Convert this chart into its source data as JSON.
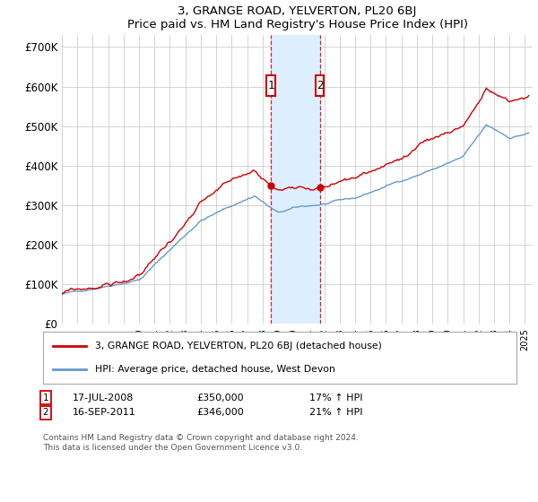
{
  "title": "3, GRANGE ROAD, YELVERTON, PL20 6BJ",
  "subtitle": "Price paid vs. HM Land Registry's House Price Index (HPI)",
  "ylabel_ticks": [
    "£0",
    "£100K",
    "£200K",
    "£300K",
    "£400K",
    "£500K",
    "£600K",
    "£700K"
  ],
  "ytick_values": [
    0,
    100000,
    200000,
    300000,
    400000,
    500000,
    600000,
    700000
  ],
  "ylim": [
    0,
    730000
  ],
  "xlim_start": 1995.0,
  "xlim_end": 2025.5,
  "sale1_date": 2008.54,
  "sale1_label": "1",
  "sale1_price": 350000,
  "sale1_hpi_pct": "17% ↑ HPI",
  "sale1_date_str": "17-JUL-2008",
  "sale2_date": 2011.71,
  "sale2_label": "2",
  "sale2_price": 346000,
  "sale2_hpi_pct": "21% ↑ HPI",
  "sale2_date_str": "16-SEP-2011",
  "red_line_color": "#cc0000",
  "blue_line_color": "#6699cc",
  "shade_color": "#ddeeff",
  "dashed_line_color": "#cc0000",
  "box_color": "#cc0000",
  "grid_color": "#cccccc",
  "background_color": "#ffffff",
  "legend_label_red": "3, GRANGE ROAD, YELVERTON, PL20 6BJ (detached house)",
  "legend_label_blue": "HPI: Average price, detached house, West Devon",
  "footer": "Contains HM Land Registry data © Crown copyright and database right 2024.\nThis data is licensed under the Open Government Licence v3.0."
}
